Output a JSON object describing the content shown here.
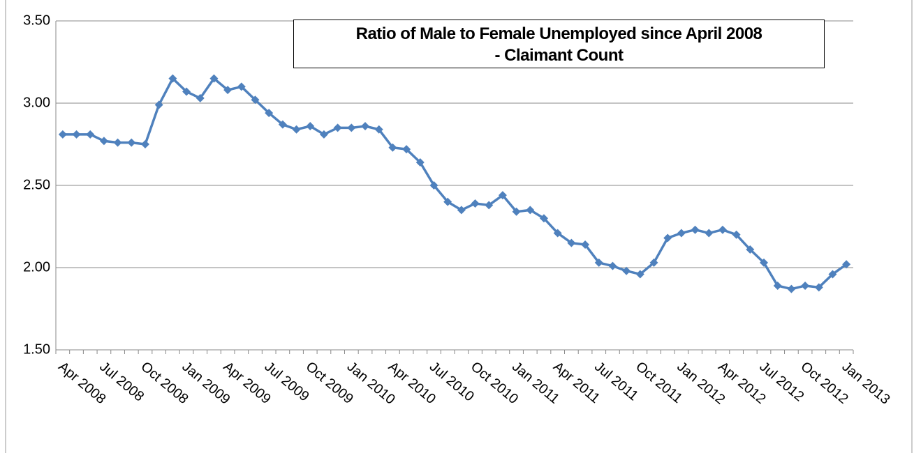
{
  "chart_data": {
    "type": "line",
    "title": "Ratio of Male to Female Unemployed since April 2008\n- Claimant Count",
    "categories": [
      "Apr 2008",
      null,
      null,
      "Jul 2008",
      null,
      null,
      "Oct 2008",
      null,
      null,
      "Jan 2009",
      null,
      null,
      "Apr 2009",
      null,
      null,
      "Jul 2009",
      null,
      null,
      "Oct 2009",
      null,
      null,
      "Jan 2010",
      null,
      null,
      "Apr 2010",
      null,
      null,
      "Jul 2010",
      null,
      null,
      "Oct 2010",
      null,
      null,
      "Jan 2011",
      null,
      null,
      "Apr 2011",
      null,
      null,
      "Jul 2011",
      null,
      null,
      "Oct 2011",
      null,
      null,
      "Jan 2012",
      null,
      null,
      "Apr 2012",
      null,
      null,
      "Jul 2012",
      null,
      null,
      "Oct 2012",
      null,
      null,
      "Jan 2013"
    ],
    "series": [
      {
        "name": "Ratio",
        "color": "#4f81bd",
        "values": [
          2.81,
          2.81,
          2.81,
          2.77,
          2.76,
          2.76,
          2.75,
          2.99,
          3.15,
          3.07,
          3.03,
          3.15,
          3.08,
          3.1,
          3.02,
          2.94,
          2.87,
          2.84,
          2.86,
          2.81,
          2.85,
          2.85,
          2.86,
          2.84,
          2.73,
          2.72,
          2.64,
          2.5,
          2.4,
          2.35,
          2.39,
          2.38,
          2.44,
          2.34,
          2.35,
          2.3,
          2.21,
          2.15,
          2.14,
          2.03,
          2.01,
          1.98,
          1.96,
          2.03,
          2.18,
          2.21,
          2.23,
          2.21,
          2.23,
          2.2,
          2.11,
          2.03,
          1.89,
          1.87,
          1.89,
          1.88,
          1.96,
          2.02
        ]
      }
    ],
    "ylim": [
      1.5,
      3.5
    ],
    "yticks": [
      {
        "value": 1.5,
        "label": "1.50"
      },
      {
        "value": 2,
        "label": "2.00"
      },
      {
        "value": 2.5,
        "label": "2.50"
      },
      {
        "value": 3,
        "label": "3.00"
      },
      {
        "value": 3.5,
        "label": "3.50"
      }
    ],
    "grid": true
  }
}
